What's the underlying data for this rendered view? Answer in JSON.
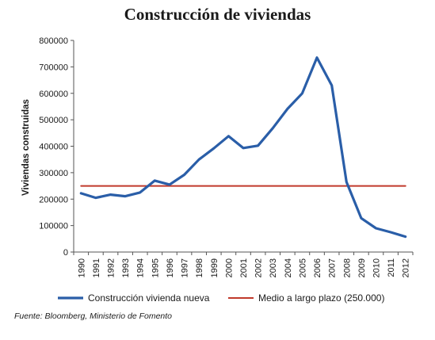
{
  "chart_data": {
    "type": "line",
    "title": "Construcción de viviendas",
    "ylabel": "Viviendas construidas",
    "xlabel": "",
    "ylim": [
      0,
      800000
    ],
    "yticks": [
      "0",
      "100000",
      "200000",
      "300000",
      "400000",
      "500000",
      "600000",
      "700000",
      "800000"
    ],
    "categories": [
      "1990",
      "1991",
      "1992",
      "1993",
      "1994",
      "1995",
      "1996",
      "1997",
      "1998",
      "1999",
      "2000",
      "2001",
      "2002",
      "2003",
      "2004",
      "2005",
      "2006",
      "2007",
      "2008",
      "2009",
      "2010",
      "2011",
      "2012"
    ],
    "series": [
      {
        "name": "Construcción vivienda nueva",
        "color": "#2a5ea8",
        "values": [
          222000,
          205000,
          217000,
          211000,
          225000,
          270000,
          255000,
          292000,
          350000,
          392000,
          438000,
          393000,
          402000,
          468000,
          541000,
          600000,
          735000,
          630000,
          265000,
          128000,
          90000,
          75000,
          58000
        ]
      },
      {
        "name": "Medio a largo plazo (250.000)",
        "color": "#c0392b",
        "values": [
          250000,
          250000,
          250000,
          250000,
          250000,
          250000,
          250000,
          250000,
          250000,
          250000,
          250000,
          250000,
          250000,
          250000,
          250000,
          250000,
          250000,
          250000,
          250000,
          250000,
          250000,
          250000,
          250000
        ]
      }
    ],
    "legend": "bottom",
    "grid": false
  },
  "source": "Fuente: Bloomberg, Ministerio de Fomento"
}
